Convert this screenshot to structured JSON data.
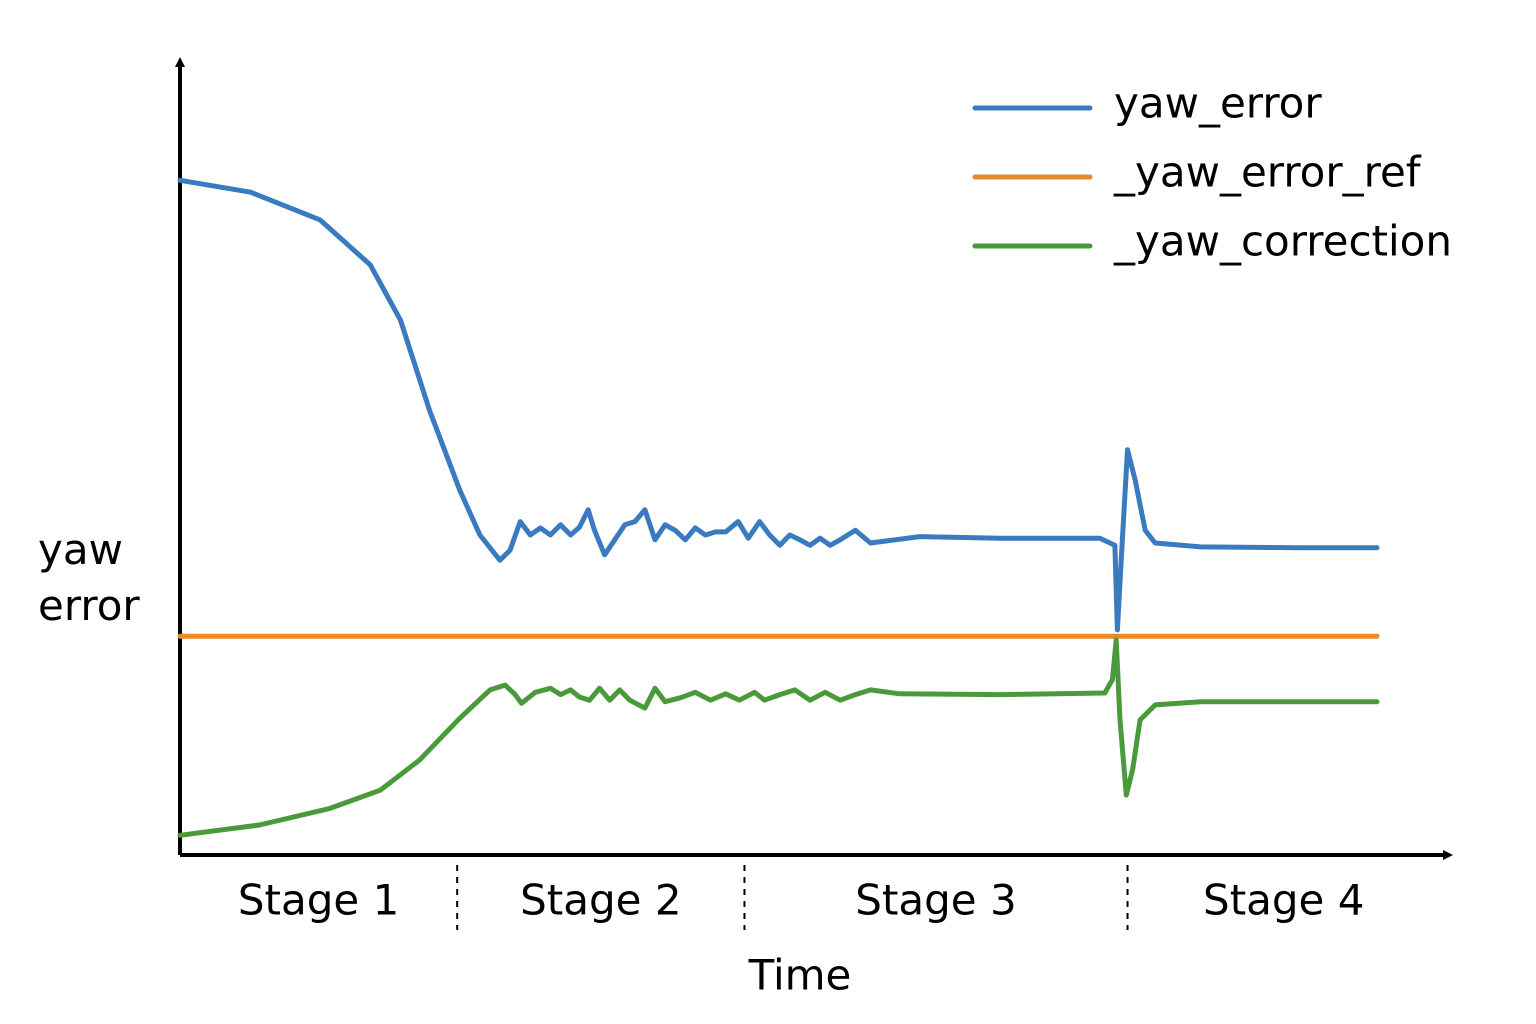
{
  "chart_data": {
    "type": "line",
    "x_label": "Time",
    "y_label": "yaw error",
    "xlim": [
      0,
      100
    ],
    "ylim": [
      0,
      100
    ],
    "categories": [
      "Stage 1",
      "Stage 2",
      "Stage 3",
      "Stage 4"
    ],
    "stage_boundaries": [
      22.0,
      44.8,
      75.2
    ],
    "legend": "upper right",
    "series": [
      {
        "name": "yaw_error",
        "color": "#3a7abf",
        "x": [
          0,
          5.6,
          11.1,
          15.1,
          17.5,
          19.8,
          22.2,
          23.8,
          25.4,
          26.2,
          27.0,
          27.8,
          28.6,
          29.4,
          30.2,
          31.0,
          31.7,
          32.4,
          32.9,
          33.7,
          34.5,
          35.3,
          36.1,
          36.9,
          37.7,
          38.5,
          39.3,
          40.1,
          40.9,
          41.7,
          42.5,
          43.3,
          44.3,
          45.1,
          46.0,
          46.8,
          47.6,
          48.4,
          49.2,
          50.0,
          50.8,
          51.6,
          52.4,
          53.6,
          54.8,
          58.7,
          65.1,
          73.0,
          74.2,
          74.4,
          74.7,
          75.2,
          75.8,
          76.6,
          77.4,
          81.0,
          88.9,
          95.0
        ],
        "values": [
          85.4,
          83.9,
          80.4,
          74.7,
          67.7,
          56.3,
          46.2,
          40.5,
          37.3,
          38.6,
          42.2,
          40.5,
          41.4,
          40.5,
          41.8,
          40.5,
          41.5,
          43.7,
          41.1,
          38.0,
          39.9,
          41.8,
          42.2,
          43.7,
          39.9,
          41.8,
          41.1,
          39.9,
          41.4,
          40.5,
          40.9,
          40.9,
          42.2,
          40.1,
          42.2,
          40.5,
          39.2,
          40.5,
          39.9,
          39.2,
          40.1,
          39.2,
          39.9,
          41.1,
          39.5,
          40.3,
          40.1,
          40.1,
          39.2,
          28.5,
          37.3,
          51.3,
          47.5,
          41.1,
          39.5,
          39.0,
          38.9,
          38.9
        ]
      },
      {
        "name": "_yaw_error_ref",
        "color": "#e8892a",
        "x": [
          0,
          95.0
        ],
        "values": [
          27.7,
          27.7
        ]
      },
      {
        "name": "_yaw_correction",
        "color": "#4a9a3c",
        "x": [
          0,
          6.3,
          11.9,
          15.9,
          19.0,
          22.2,
          24.6,
          25.8,
          26.6,
          27.1,
          28.2,
          29.4,
          30.2,
          31.0,
          31.7,
          32.5,
          33.3,
          34.1,
          34.9,
          35.7,
          36.9,
          37.7,
          38.5,
          39.7,
          40.9,
          42.1,
          43.3,
          44.4,
          45.6,
          46.4,
          47.6,
          48.8,
          50.0,
          51.2,
          52.4,
          53.6,
          54.8,
          57.1,
          65.1,
          73.4,
          74.0,
          74.3,
          74.6,
          75.1,
          75.6,
          76.2,
          77.4,
          81.0,
          88.9,
          95.0
        ],
        "values": [
          2.5,
          3.8,
          5.9,
          8.2,
          12.0,
          17.3,
          20.9,
          21.5,
          20.3,
          19.2,
          20.6,
          21.1,
          20.3,
          20.9,
          20.0,
          19.6,
          21.1,
          19.6,
          20.9,
          19.6,
          18.6,
          21.1,
          19.4,
          19.9,
          20.6,
          19.6,
          20.4,
          19.6,
          20.6,
          19.6,
          20.3,
          20.9,
          19.6,
          20.6,
          19.6,
          20.3,
          20.9,
          20.4,
          20.3,
          20.5,
          22.2,
          27.2,
          17.1,
          7.6,
          10.8,
          17.1,
          19.0,
          19.4,
          19.4,
          19.4
        ]
      }
    ]
  }
}
